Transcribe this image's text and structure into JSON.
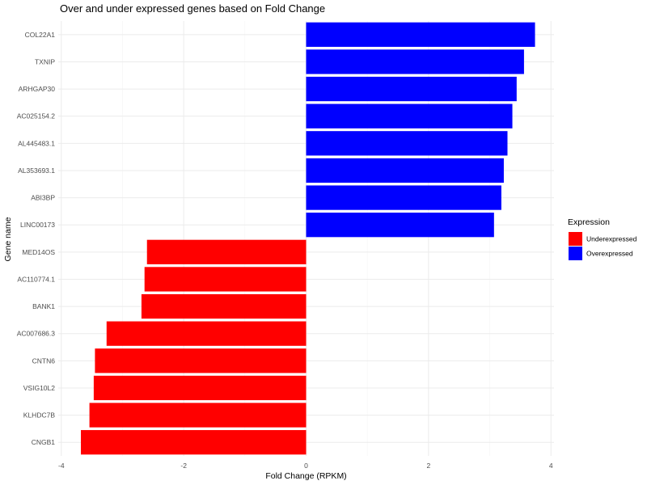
{
  "chart_data": {
    "type": "bar",
    "orientation": "horizontal",
    "title": "Over and under expressed genes based on Fold Change",
    "xlabel": "Fold Change (RPKM)",
    "ylabel": "Gene name",
    "xlim": [
      -4.05,
      4.05
    ],
    "xticks": [
      -4,
      -2,
      0,
      2,
      4
    ],
    "grid": true,
    "legend_position": "right",
    "legend": {
      "title": "Expression",
      "items": [
        {
          "label": "Underexpressed",
          "color": "#ff0000"
        },
        {
          "label": "Overexpressed",
          "color": "#0000ff"
        }
      ]
    },
    "categories": [
      "COL22A1",
      "TXNIP",
      "ARHGAP30",
      "AC025154.2",
      "AL445483.1",
      "AL353693.1",
      "ABI3BP",
      "LINC00173",
      "MED14OS",
      "AC110774.1",
      "BANK1",
      "AC007686.3",
      "CNTN6",
      "VSIG10L2",
      "KLHDC7B",
      "CNGB1"
    ],
    "values": [
      3.74,
      3.56,
      3.44,
      3.37,
      3.29,
      3.23,
      3.19,
      3.07,
      -2.6,
      -2.64,
      -2.69,
      -3.26,
      -3.45,
      -3.47,
      -3.54,
      -3.68
    ],
    "expression": [
      "Overexpressed",
      "Overexpressed",
      "Overexpressed",
      "Overexpressed",
      "Overexpressed",
      "Overexpressed",
      "Overexpressed",
      "Overexpressed",
      "Underexpressed",
      "Underexpressed",
      "Underexpressed",
      "Underexpressed",
      "Underexpressed",
      "Underexpressed",
      "Underexpressed",
      "Underexpressed"
    ],
    "colors": {
      "Overexpressed": "#0000ff",
      "Underexpressed": "#ff0000"
    }
  }
}
